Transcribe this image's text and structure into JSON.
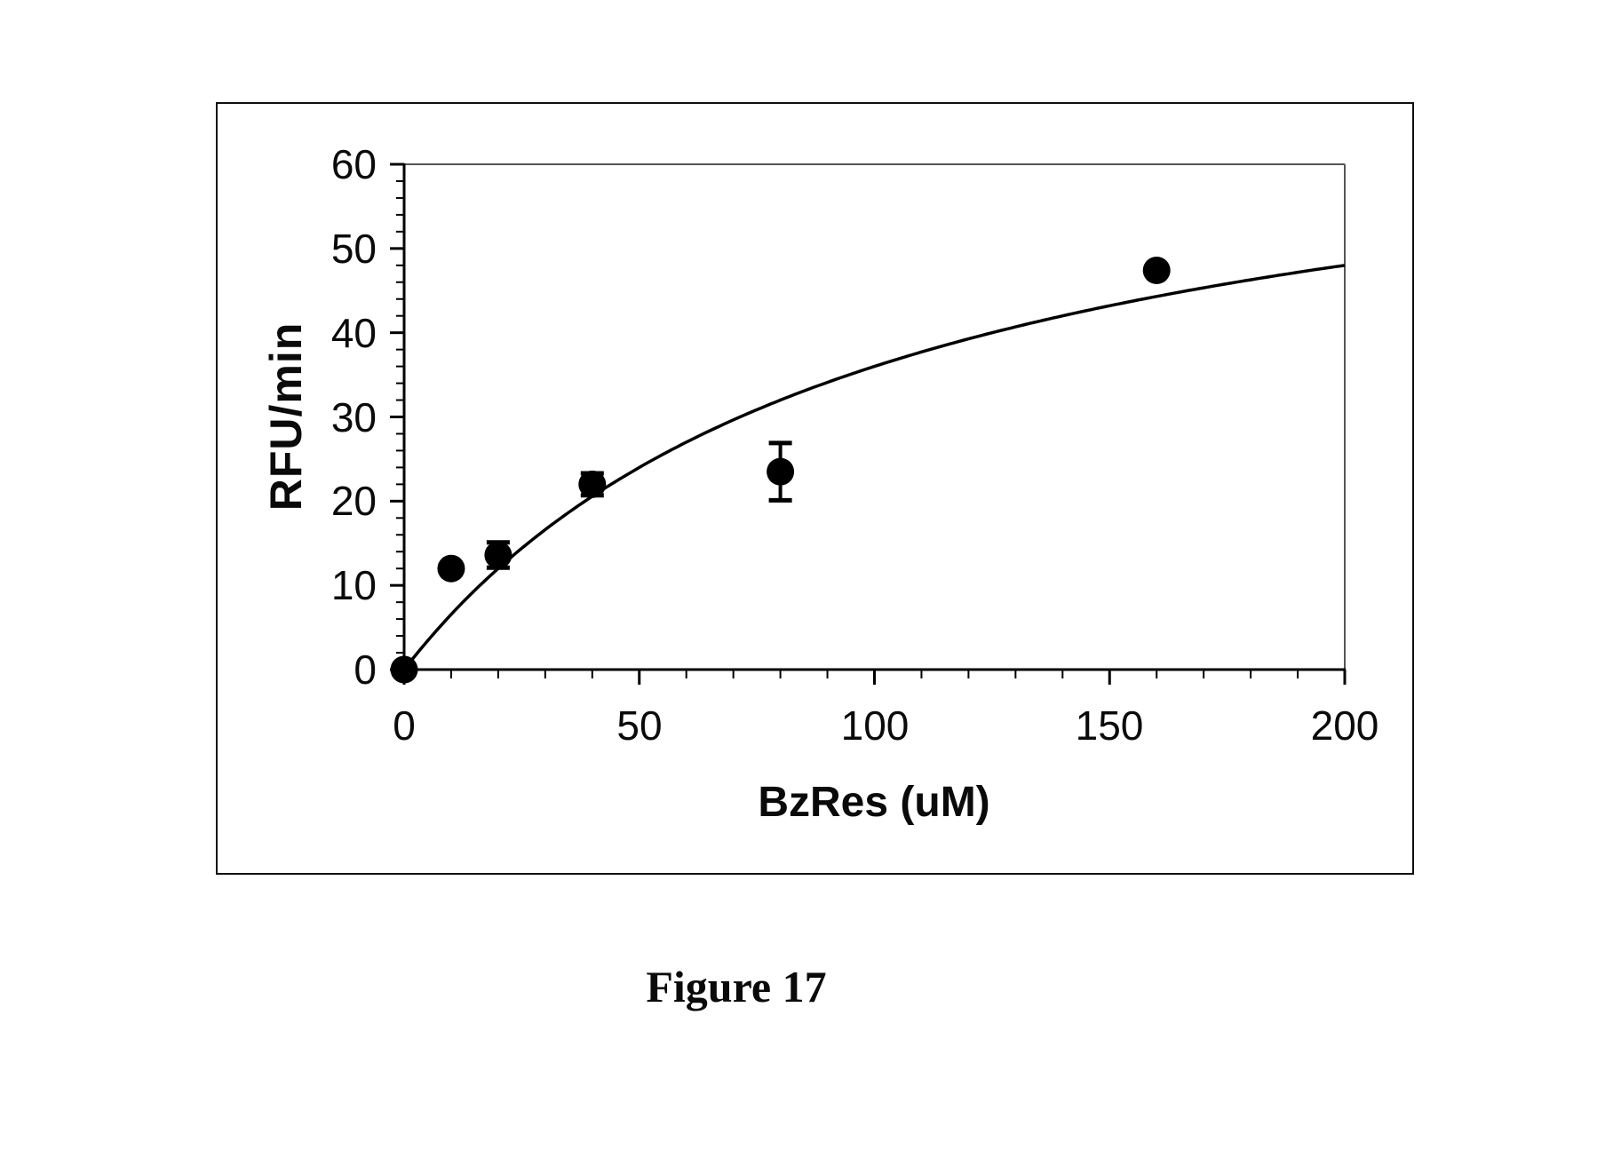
{
  "figure": {
    "caption": "Figure 17"
  },
  "colors": {
    "ink": "#000000",
    "background": "#ffffff",
    "frame_border": "#101010",
    "plot_box_thin": "#555555"
  },
  "chart_data": {
    "type": "scatter",
    "title": "",
    "xlabel": "BzRes (uM)",
    "ylabel": "RFU/min",
    "xlim": [
      0,
      200
    ],
    "ylim": [
      0,
      60
    ],
    "x_major_ticks": [
      0,
      50,
      100,
      150,
      200
    ],
    "x_minor_step": 10,
    "y_major_ticks": [
      0,
      10,
      20,
      30,
      40,
      50,
      60
    ],
    "y_minor_step": 2,
    "grid": false,
    "legend": false,
    "marker": "filled-circle",
    "series": [
      {
        "name": "measured-points",
        "kind": "points",
        "color": "#000000",
        "points": [
          {
            "x": 0,
            "y": 0,
            "yerr": 0
          },
          {
            "x": 10,
            "y": 12.0,
            "yerr": 0
          },
          {
            "x": 20,
            "y": 13.6,
            "yerr": 1.5
          },
          {
            "x": 40,
            "y": 22.0,
            "yerr": 1.3
          },
          {
            "x": 80,
            "y": 23.5,
            "yerr": 3.4
          },
          {
            "x": 160,
            "y": 47.4,
            "yerr": 0
          }
        ]
      },
      {
        "name": "michaelis-menten-fit",
        "kind": "fit-curve",
        "equation": "y = Vmax * x / (Km + x)",
        "Vmax": 72,
        "Km": 100,
        "x_range": [
          0,
          200
        ],
        "color": "#000000"
      }
    ]
  }
}
